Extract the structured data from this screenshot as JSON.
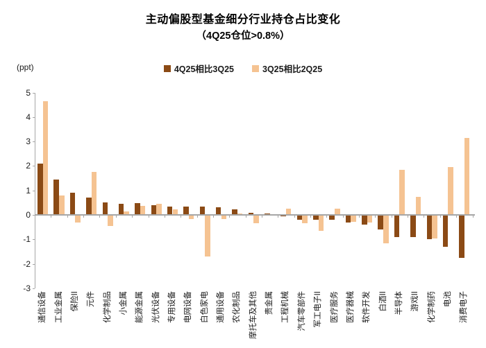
{
  "chart_data": {
    "type": "bar",
    "title": "主动偏股型基金细分行业持仓占比变化",
    "subtitle": "（4Q25仓位>0.8%）",
    "ylabel": "(ppt)",
    "ylim": [
      -3,
      5
    ],
    "yticks": [
      5,
      4,
      3,
      2,
      1,
      0,
      -1,
      -2,
      -3
    ],
    "grid": false,
    "legend_position": "top-center",
    "axis_color": "#a6a6a6",
    "categories": [
      "通信设备",
      "工业金属",
      "保险II",
      "元件",
      "化学制品",
      "小金属",
      "能源金属",
      "光伏设备",
      "专用设备",
      "电网设备",
      "白色家电",
      "通用设备",
      "农化制品",
      "摩托车及其他",
      "贵金属",
      "工程机械",
      "汽车零部件",
      "军工电子II",
      "医疗服务",
      "医疗器械",
      "软件开发",
      "白酒II",
      "半导体",
      "游戏II",
      "化学制药",
      "电池",
      "消费电子"
    ],
    "series": [
      {
        "name": "4Q25相比3Q25",
        "color": "#8B4A15",
        "values": [
          2.1,
          1.45,
          0.9,
          0.72,
          0.5,
          0.45,
          0.48,
          0.4,
          0.35,
          0.33,
          0.33,
          0.32,
          0.22,
          0.1,
          0.07,
          -0.05,
          -0.2,
          -0.2,
          -0.2,
          -0.32,
          -0.4,
          -0.6,
          -0.9,
          -0.9,
          -1.0,
          -1.3,
          -1.75
        ]
      },
      {
        "name": "3Q25相比2Q25",
        "color": "#F5C392",
        "values": [
          4.65,
          0.8,
          -0.3,
          1.77,
          -0.45,
          0.15,
          0.38,
          0.45,
          0.22,
          -0.18,
          -1.7,
          -0.18,
          0.07,
          -0.35,
          0.03,
          0.25,
          -0.35,
          -0.65,
          0.25,
          -0.28,
          -0.3,
          -1.15,
          1.85,
          0.75,
          -0.95,
          1.95,
          3.15
        ]
      }
    ]
  }
}
